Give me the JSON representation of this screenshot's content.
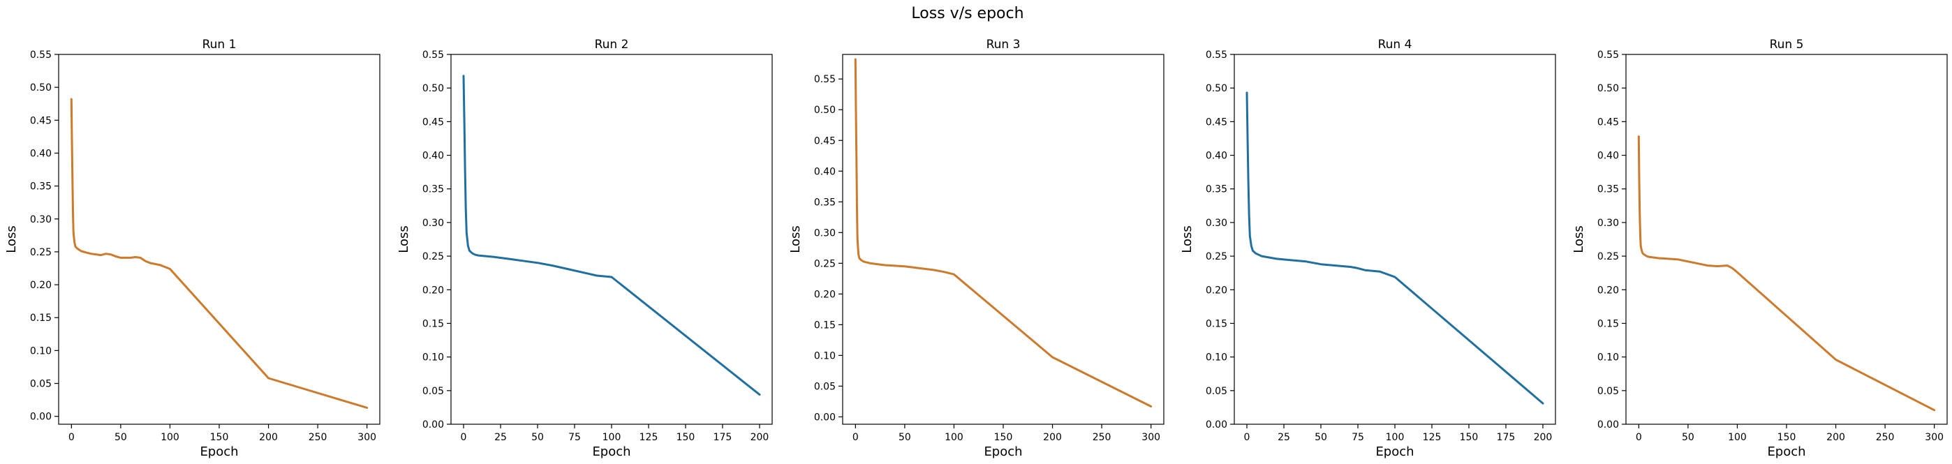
{
  "figure": {
    "suptitle": "Loss v/s epoch"
  },
  "colors": {
    "blue": "#1f6f9f",
    "orange": "#cc7a2b",
    "axis": "#000000"
  },
  "chart_data": [
    {
      "type": "line",
      "title": "Run 1",
      "xlabel": "Epoch",
      "ylabel": "Loss",
      "xlim": [
        -13,
        313
      ],
      "ylim": [
        -0.012,
        0.55
      ],
      "xticks": [
        0,
        50,
        100,
        150,
        200,
        250,
        300
      ],
      "yticks": [
        0.0,
        0.05,
        0.1,
        0.15,
        0.2,
        0.25,
        0.3,
        0.35,
        0.4,
        0.45,
        0.5,
        0.55
      ],
      "grid": false,
      "series": [
        {
          "color": "#cc7a2b",
          "x": [
            0,
            0.5,
            1,
            1.5,
            2,
            3,
            4,
            6,
            8,
            10,
            15,
            20,
            30,
            35,
            40,
            45,
            50,
            55,
            60,
            65,
            70,
            75,
            80,
            90,
            100,
            200,
            300
          ],
          "y": [
            0.482,
            0.42,
            0.36,
            0.31,
            0.28,
            0.265,
            0.258,
            0.255,
            0.253,
            0.251,
            0.249,
            0.247,
            0.245,
            0.247,
            0.246,
            0.243,
            0.241,
            0.241,
            0.241,
            0.242,
            0.241,
            0.236,
            0.233,
            0.23,
            0.224,
            0.058,
            0.013
          ]
        }
      ]
    },
    {
      "type": "line",
      "title": "Run 2",
      "xlabel": "Epoch",
      "ylabel": "Loss",
      "xlim": [
        -8.5,
        208.5
      ],
      "ylim": [
        0.0,
        0.55
      ],
      "xticks": [
        0,
        25,
        50,
        75,
        100,
        125,
        150,
        175,
        200
      ],
      "yticks": [
        0.0,
        0.05,
        0.1,
        0.15,
        0.2,
        0.25,
        0.3,
        0.35,
        0.4,
        0.45,
        0.5,
        0.55
      ],
      "grid": false,
      "series": [
        {
          "color": "#1f6f9f",
          "x": [
            0,
            0.5,
            1,
            1.5,
            2,
            3,
            4,
            6,
            8,
            10,
            15,
            20,
            30,
            40,
            50,
            60,
            70,
            80,
            90,
            100,
            200
          ],
          "y": [
            0.518,
            0.45,
            0.38,
            0.32,
            0.285,
            0.265,
            0.258,
            0.254,
            0.252,
            0.251,
            0.25,
            0.249,
            0.246,
            0.243,
            0.24,
            0.236,
            0.231,
            0.226,
            0.221,
            0.219,
            0.044
          ]
        }
      ]
    },
    {
      "type": "line",
      "title": "Run 3",
      "xlabel": "Epoch",
      "ylabel": "Loss",
      "xlim": [
        -13,
        313
      ],
      "ylim": [
        -0.012,
        0.59
      ],
      "xticks": [
        0,
        50,
        100,
        150,
        200,
        250,
        300
      ],
      "yticks": [
        0.0,
        0.05,
        0.1,
        0.15,
        0.2,
        0.25,
        0.3,
        0.35,
        0.4,
        0.45,
        0.5,
        0.55
      ],
      "grid": false,
      "series": [
        {
          "color": "#cc7a2b",
          "x": [
            0,
            0.5,
            1,
            1.5,
            2,
            3,
            4,
            6,
            8,
            10,
            15,
            20,
            30,
            40,
            50,
            60,
            70,
            80,
            90,
            100,
            200,
            300
          ],
          "y": [
            0.582,
            0.5,
            0.42,
            0.34,
            0.29,
            0.265,
            0.258,
            0.255,
            0.253,
            0.252,
            0.25,
            0.249,
            0.247,
            0.246,
            0.245,
            0.243,
            0.241,
            0.239,
            0.236,
            0.232,
            0.097,
            0.017
          ]
        }
      ]
    },
    {
      "type": "line",
      "title": "Run 4",
      "xlabel": "Epoch",
      "ylabel": "Loss",
      "xlim": [
        -8.5,
        208.5
      ],
      "ylim": [
        0.0,
        0.55
      ],
      "xticks": [
        0,
        25,
        50,
        75,
        100,
        125,
        150,
        175,
        200
      ],
      "yticks": [
        0.0,
        0.05,
        0.1,
        0.15,
        0.2,
        0.25,
        0.3,
        0.35,
        0.4,
        0.45,
        0.5,
        0.55
      ],
      "grid": false,
      "series": [
        {
          "color": "#1f6f9f",
          "x": [
            0,
            0.5,
            1,
            1.5,
            2,
            3,
            4,
            6,
            8,
            10,
            15,
            20,
            30,
            40,
            50,
            60,
            70,
            75,
            80,
            90,
            100,
            200
          ],
          "y": [
            0.493,
            0.42,
            0.36,
            0.31,
            0.28,
            0.265,
            0.258,
            0.254,
            0.252,
            0.25,
            0.248,
            0.246,
            0.244,
            0.242,
            0.238,
            0.236,
            0.234,
            0.232,
            0.229,
            0.227,
            0.219,
            0.031
          ]
        }
      ]
    },
    {
      "type": "line",
      "title": "Run 5",
      "xlabel": "Epoch",
      "ylabel": "Loss",
      "xlim": [
        -13,
        313
      ],
      "ylim": [
        0.0,
        0.55
      ],
      "xticks": [
        0,
        50,
        100,
        150,
        200,
        250,
        300
      ],
      "yticks": [
        0.0,
        0.05,
        0.1,
        0.15,
        0.2,
        0.25,
        0.3,
        0.35,
        0.4,
        0.45,
        0.5,
        0.55
      ],
      "grid": false,
      "series": [
        {
          "color": "#cc7a2b",
          "x": [
            0,
            0.5,
            1,
            1.5,
            2,
            3,
            4,
            6,
            8,
            10,
            15,
            20,
            30,
            40,
            50,
            60,
            70,
            80,
            90,
            95,
            100,
            200,
            300
          ],
          "y": [
            0.428,
            0.36,
            0.31,
            0.28,
            0.265,
            0.258,
            0.254,
            0.252,
            0.25,
            0.249,
            0.248,
            0.247,
            0.246,
            0.245,
            0.242,
            0.239,
            0.236,
            0.235,
            0.236,
            0.232,
            0.226,
            0.096,
            0.021
          ]
        }
      ]
    }
  ]
}
